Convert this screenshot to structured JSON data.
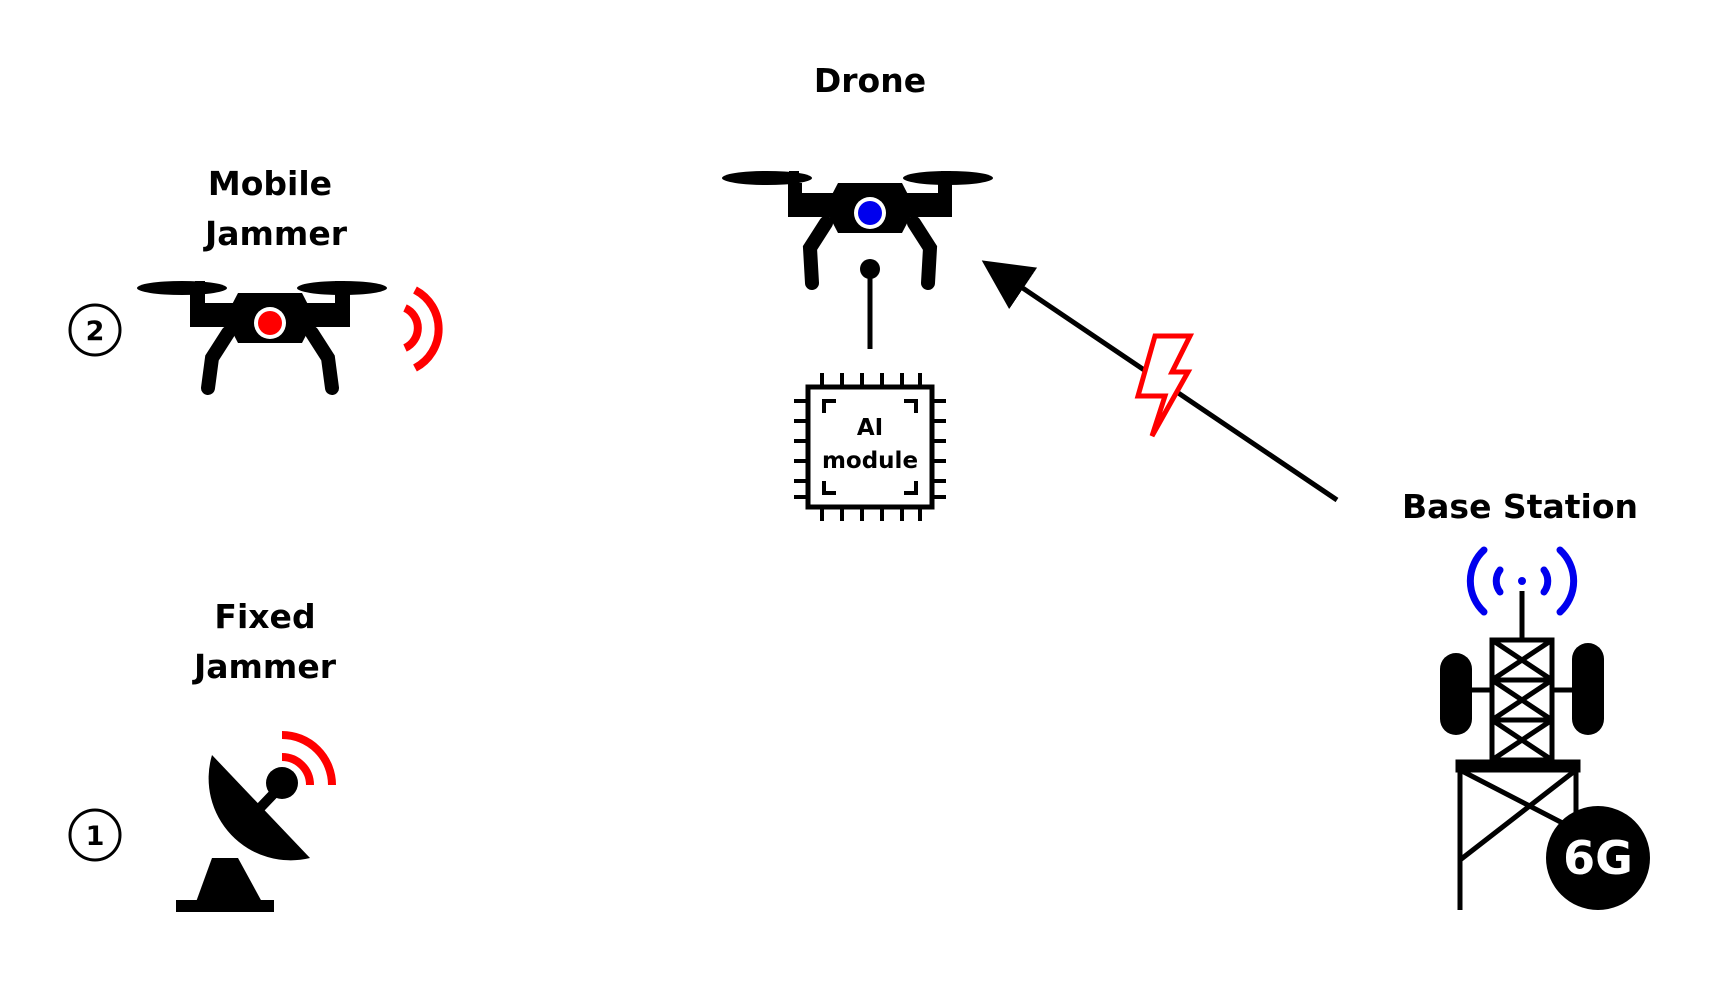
{
  "labels": {
    "drone": "Drone",
    "mobile_jammer_line1": "Mobile",
    "mobile_jammer_line2": "Jammer",
    "fixed_jammer_line1": "Fixed",
    "fixed_jammer_line2": "Jammer",
    "base_station": "Base Station",
    "ai_module_line1": "AI",
    "ai_module_line2": "module",
    "band": "6G"
  },
  "markers": {
    "mobile_jammer": "2",
    "fixed_jammer": "1"
  },
  "icons": {
    "drone": "drone-icon",
    "mobile_jammer": "jammer-drone-icon",
    "fixed_jammer": "satellite-dish-icon",
    "base_station": "cell-tower-icon",
    "ai_module": "chip-icon",
    "link": "uplink-arrow",
    "interference": "lightning-bolt-icon"
  },
  "colors": {
    "drone_core": "#0000ee",
    "jammer_core": "#ff0000",
    "jamming_signal": "#ff0000",
    "tower_signal": "#0000ee",
    "interference": "#ff0000"
  }
}
